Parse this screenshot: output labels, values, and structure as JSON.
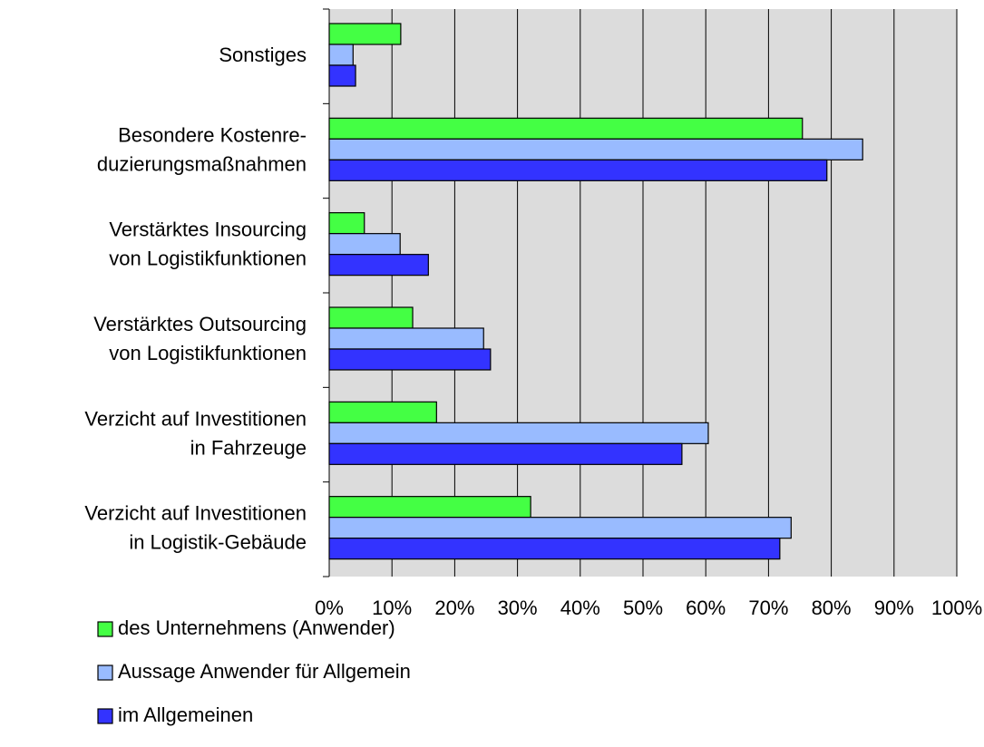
{
  "chart_data": {
    "type": "hbar",
    "categories": [
      [
        "Sonstiges"
      ],
      [
        "Besondere Kostenre-",
        "duzierungsmaßnahmen"
      ],
      [
        "Verstärktes Insourcing",
        "von Logistikfunktionen"
      ],
      [
        "Verstärktes Outsourcing",
        "von Logistikfunktionen"
      ],
      [
        "Verzicht auf Investitionen",
        "in Fahrzeuge"
      ],
      [
        "Verzicht auf Investitionen",
        "in Logistik-Gebäude"
      ]
    ],
    "series": [
      {
        "name": "des Unternehmens (Anwender)",
        "color": "#44ff44",
        "values": [
          11.4,
          75.4,
          5.6,
          13.3,
          17.1,
          32.1
        ]
      },
      {
        "name": "Aussage Anwender für Allgemein",
        "color": "#99bbff",
        "values": [
          3.8,
          85.0,
          11.3,
          24.6,
          60.4,
          73.6
        ]
      },
      {
        "name": "im Allgemeinen",
        "color": "#3333ff",
        "values": [
          4.2,
          79.3,
          15.8,
          25.7,
          56.2,
          71.8
        ]
      }
    ],
    "xlim": [
      0,
      100
    ],
    "xticks": [
      {
        "value": 0,
        "label": "0%"
      },
      {
        "value": 10,
        "label": "10%"
      },
      {
        "value": 20,
        "label": "20%"
      },
      {
        "value": 30,
        "label": "30%"
      },
      {
        "value": 40,
        "label": "40%"
      },
      {
        "value": 50,
        "label": "50%"
      },
      {
        "value": 60,
        "label": "60%"
      },
      {
        "value": 70,
        "label": "70%"
      },
      {
        "value": 80,
        "label": "80%"
      },
      {
        "value": 90,
        "label": "90%"
      },
      {
        "value": 100,
        "label": "100%"
      }
    ],
    "grid": true
  }
}
